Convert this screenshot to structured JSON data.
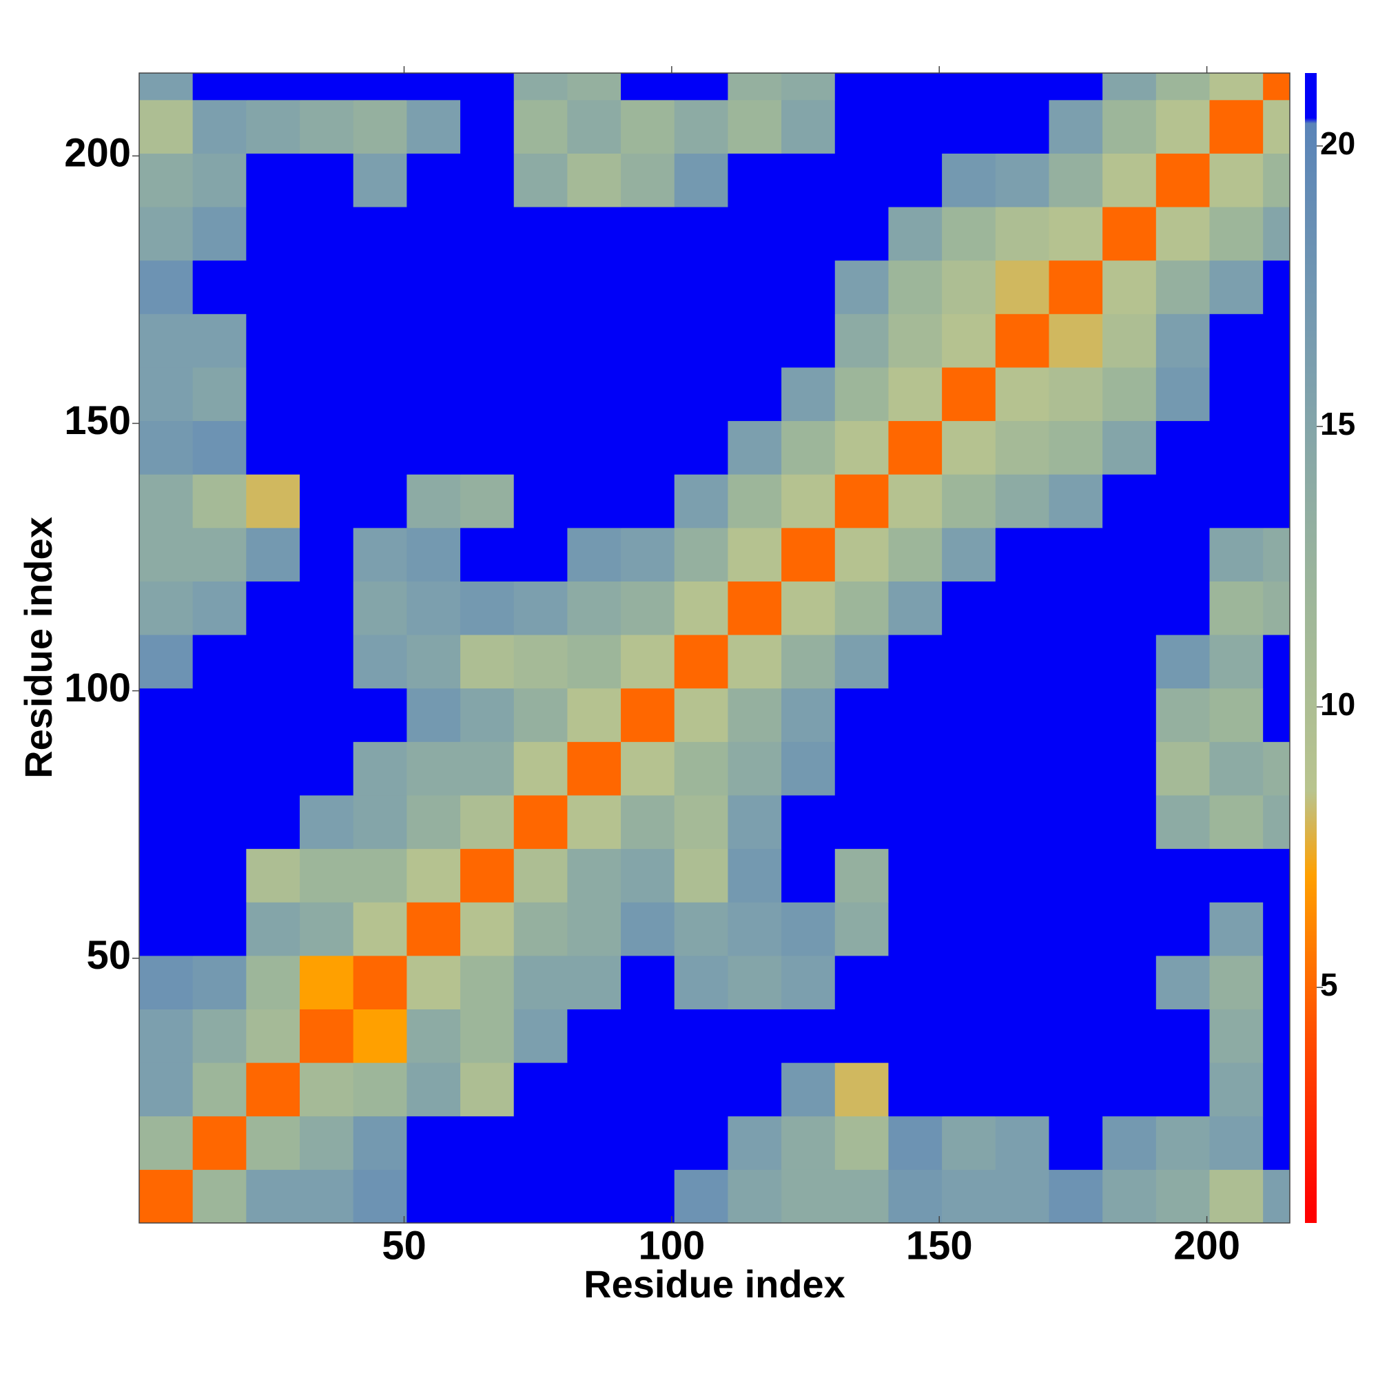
{
  "chart_data": {
    "type": "heatmap",
    "x_label": "Residue index",
    "y_label": "Residue index",
    "x_bins": [
      0.5,
      10.5,
      20.5,
      30.5,
      40.5,
      50.5,
      60.5,
      70.5,
      80.5,
      90.5,
      100.5,
      110.5,
      120.5,
      130.5,
      140.5,
      150.5,
      160.5,
      170.5,
      180.5,
      190.5,
      200.5,
      210.5,
      215.5
    ],
    "y_bins": [
      0.5,
      10.5,
      20.5,
      30.5,
      40.5,
      50.5,
      60.5,
      70.5,
      80.5,
      90.5,
      100.5,
      110.5,
      120.5,
      130.5,
      140.5,
      150.5,
      160.5,
      170.5,
      180.5,
      190.5,
      200.5,
      210.5,
      215.5
    ],
    "z": [
      [
        5,
        12,
        16,
        16,
        18,
        21,
        21,
        21,
        21,
        21,
        18,
        15,
        14,
        14,
        17,
        16,
        16,
        18,
        15,
        14,
        10,
        16
      ],
      [
        12,
        5,
        12,
        14,
        17,
        21,
        21,
        21,
        21,
        21,
        21,
        16,
        14,
        11,
        18,
        15,
        16,
        21,
        17,
        15,
        16,
        21
      ],
      [
        16,
        12,
        5,
        11,
        12,
        15,
        10,
        21,
        21,
        21,
        21,
        21,
        17,
        8,
        21,
        21,
        21,
        21,
        21,
        21,
        15,
        21
      ],
      [
        16,
        14,
        11,
        5,
        7,
        14,
        12,
        16,
        21,
        21,
        21,
        21,
        21,
        21,
        21,
        21,
        21,
        21,
        21,
        21,
        14,
        21
      ],
      [
        18,
        17,
        12,
        7,
        5,
        9,
        12,
        15,
        15,
        21,
        16,
        15,
        16,
        21,
        21,
        21,
        21,
        21,
        21,
        16,
        13,
        21
      ],
      [
        21,
        21,
        15,
        14,
        9,
        5,
        9,
        13,
        14,
        17,
        15,
        16,
        17,
        14,
        21,
        21,
        21,
        21,
        21,
        21,
        16,
        21
      ],
      [
        21,
        21,
        10,
        12,
        12,
        9,
        5,
        10,
        14,
        15,
        10,
        17,
        21,
        13,
        21,
        21,
        21,
        21,
        21,
        21,
        21,
        21
      ],
      [
        21,
        21,
        21,
        16,
        15,
        13,
        10,
        5,
        9,
        13,
        11,
        16,
        21,
        21,
        21,
        21,
        21,
        21,
        21,
        14,
        12,
        14
      ],
      [
        21,
        21,
        21,
        21,
        15,
        14,
        14,
        9,
        5,
        9,
        12,
        14,
        17,
        21,
        21,
        21,
        21,
        21,
        21,
        11,
        14,
        13
      ],
      [
        21,
        21,
        21,
        21,
        21,
        17,
        15,
        13,
        9,
        5,
        9,
        13,
        16,
        21,
        21,
        21,
        21,
        21,
        21,
        13,
        12,
        21
      ],
      [
        18,
        21,
        21,
        21,
        16,
        15,
        10,
        11,
        12,
        9,
        5,
        9,
        13,
        16,
        21,
        21,
        21,
        21,
        21,
        17,
        14,
        21
      ],
      [
        15,
        16,
        21,
        21,
        15,
        16,
        17,
        16,
        14,
        13,
        9,
        5,
        9,
        12,
        16,
        21,
        21,
        21,
        21,
        21,
        12,
        13
      ],
      [
        14,
        14,
        17,
        21,
        16,
        17,
        21,
        21,
        17,
        16,
        13,
        9,
        5,
        9,
        12,
        16,
        21,
        21,
        21,
        21,
        15,
        14
      ],
      [
        14,
        11,
        8,
        21,
        21,
        14,
        13,
        21,
        21,
        21,
        16,
        12,
        9,
        5,
        9,
        12,
        14,
        16,
        21,
        21,
        21,
        21
      ],
      [
        17,
        18,
        21,
        21,
        21,
        21,
        21,
        21,
        21,
        21,
        21,
        16,
        12,
        9,
        5,
        9,
        11,
        12,
        15,
        21,
        21,
        21
      ],
      [
        16,
        15,
        21,
        21,
        21,
        21,
        21,
        21,
        21,
        21,
        21,
        21,
        16,
        12,
        9,
        5,
        9,
        10,
        12,
        17,
        21,
        21
      ],
      [
        16,
        16,
        21,
        21,
        21,
        21,
        21,
        21,
        21,
        21,
        21,
        21,
        21,
        14,
        11,
        9,
        5,
        8,
        10,
        16,
        21,
        21
      ],
      [
        18,
        21,
        21,
        21,
        21,
        21,
        21,
        21,
        21,
        21,
        21,
        21,
        21,
        16,
        12,
        10,
        8,
        5,
        9,
        13,
        16,
        21
      ],
      [
        15,
        17,
        21,
        21,
        21,
        21,
        21,
        21,
        21,
        21,
        21,
        21,
        21,
        21,
        15,
        12,
        10,
        9,
        5,
        9,
        12,
        15
      ],
      [
        14,
        15,
        21,
        21,
        16,
        21,
        21,
        14,
        11,
        13,
        17,
        21,
        21,
        21,
        21,
        17,
        16,
        13,
        9,
        5,
        9,
        12
      ],
      [
        10,
        16,
        15,
        14,
        13,
        16,
        21,
        12,
        14,
        12,
        14,
        12,
        15,
        21,
        21,
        21,
        21,
        16,
        12,
        9,
        5,
        9
      ],
      [
        16,
        21,
        21,
        21,
        21,
        21,
        21,
        14,
        13,
        21,
        21,
        13,
        14,
        21,
        21,
        21,
        21,
        21,
        15,
        12,
        9,
        5
      ]
    ],
    "xlim": [
      0.5,
      215.5
    ],
    "ylim": [
      0.5,
      215.5
    ],
    "xticks": [
      50,
      100,
      150,
      200
    ],
    "yticks": [
      50,
      100,
      150,
      200
    ],
    "colorbar_lim": [
      0.8,
      21.3
    ],
    "colorbar_ticks": [
      5,
      10,
      15,
      20
    ],
    "colorscale": [
      {
        "value": 1,
        "color": "#ff0000"
      },
      {
        "value": 4,
        "color": "#ff4a00"
      },
      {
        "value": 7,
        "color": "#ffa000"
      },
      {
        "value": 8.5,
        "color": "#b9c48e"
      },
      {
        "value": 12,
        "color": "#9db69a"
      },
      {
        "value": 16,
        "color": "#7c9fae"
      },
      {
        "value": 20.4,
        "color": "#5a84b8"
      },
      {
        "value": 20.5,
        "color": "#0000f8"
      }
    ]
  }
}
